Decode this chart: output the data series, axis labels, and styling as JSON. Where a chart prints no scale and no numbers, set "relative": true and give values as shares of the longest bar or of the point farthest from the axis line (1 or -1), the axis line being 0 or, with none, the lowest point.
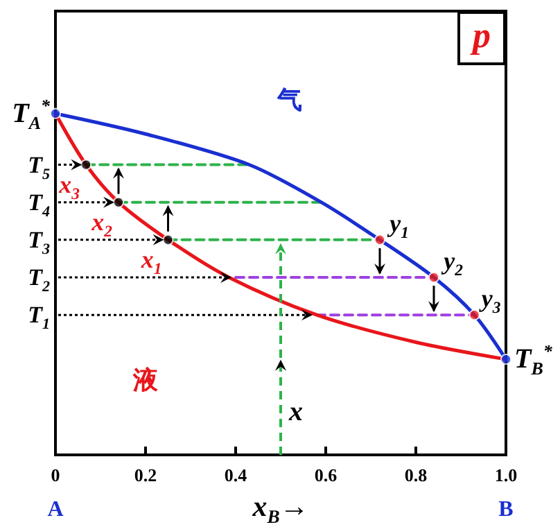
{
  "chart_data": {
    "type": "line",
    "relative": true,
    "xlabel": "x$_{B}$→",
    "xlim": [
      0,
      1
    ],
    "xticks": [
      0,
      0.2,
      0.4,
      0.6,
      0.8,
      {
        "value": 1,
        "label": "1.0"
      }
    ],
    "grid": false,
    "series": [
      {
        "color": "#e8161b",
        "x": [
          0,
          0.068,
          0.14,
          0.25,
          0.385,
          0.58,
          0.8,
          1
        ],
        "values": [
          1,
          0.85,
          0.74,
          0.63,
          0.52,
          0.41,
          0.33,
          0.28
        ],
        "marker": "none",
        "line_style": "solid"
      },
      {
        "color": "#1a2fd0",
        "x": [
          0,
          0.2,
          0.43,
          0.59,
          0.72,
          0.84,
          0.93,
          1
        ],
        "values": [
          1,
          0.94,
          0.85,
          0.74,
          0.63,
          0.52,
          0.41,
          0.28
        ],
        "marker": "none",
        "line_style": "solid"
      },
      {
        "color": "#2db34a",
        "x": [
          0.068,
          0.43
        ],
        "values": [
          0.85,
          0.85
        ],
        "marker": "none",
        "line_style": "dashed"
      },
      {
        "color": "#2db34a",
        "x": [
          0.14,
          0.59
        ],
        "values": [
          0.74,
          0.74
        ],
        "marker": "none",
        "line_style": "dashed"
      },
      {
        "color": "#2db34a",
        "x": [
          0.25,
          0.72
        ],
        "values": [
          0.63,
          0.63
        ],
        "marker": "none",
        "line_style": "dashed"
      },
      {
        "color": "#a040e0",
        "x": [
          0.4,
          0.84
        ],
        "values": [
          0.52,
          0.52
        ],
        "marker": "none",
        "line_style": "dashed"
      },
      {
        "color": "#a040e0",
        "x": [
          0.58,
          0.93
        ],
        "values": [
          0.41,
          0.41
        ],
        "marker": "none",
        "line_style": "dashed"
      },
      {
        "type": "scatter",
        "color": "#000000",
        "x": [
          0.068,
          0.14,
          0.25
        ],
        "values": [
          0.85,
          0.74,
          0.63
        ],
        "marker": "circle"
      },
      {
        "type": "scatter",
        "color": "#e8161b",
        "x": [
          0.72,
          0.84,
          0.93
        ],
        "values": [
          0.63,
          0.52,
          0.41
        ],
        "marker": "circle"
      },
      {
        "type": "scatter",
        "color": "#1a2fd0",
        "x": [
          0,
          1
        ],
        "values": [
          1,
          0.28
        ],
        "marker": "circle"
      }
    ],
    "annotations": [
      {
        "text": "T$_{A}$$^{*}$",
        "x": 0,
        "y": 1
      },
      {
        "text": "T$_{5}$",
        "x": 0.068,
        "y": 0.85
      },
      {
        "text": "T$_{4}$",
        "x": 0.14,
        "y": 0.74
      },
      "T$_{3}$",
      {
        "text": "T$_{2}$",
        "x": 0.4,
        "y": 0.52
      },
      {
        "text": "T$_{1}$",
        "x": 0.58,
        "y": 0.41
      },
      {
        "text": "T$_{B}$$^{*}$",
        "x": 1,
        "y": 0.28
      },
      {
        "text": "x$_{3}$",
        "x": 0.068,
        "y": 0.85
      },
      {
        "text": "x$_{2}$",
        "x": 0.14,
        "y": 0.74
      },
      {
        "text": "x$_{1}$",
        "x": 0.25,
        "y": 0.63
      },
      {
        "text": "y$_{1}$",
        "x": 0.72,
        "y": 0.63
      },
      {
        "text": "y$_{2}$",
        "x": 0.84,
        "y": 0.52
      },
      {
        "text": "y$_{3}$",
        "x": 0.93,
        "y": 0.41
      },
      {
        "text": "x",
        "x": 0.5,
        "y": 0.62
      },
      "气",
      "液",
      "p",
      "A",
      "B"
    ]
  }
}
